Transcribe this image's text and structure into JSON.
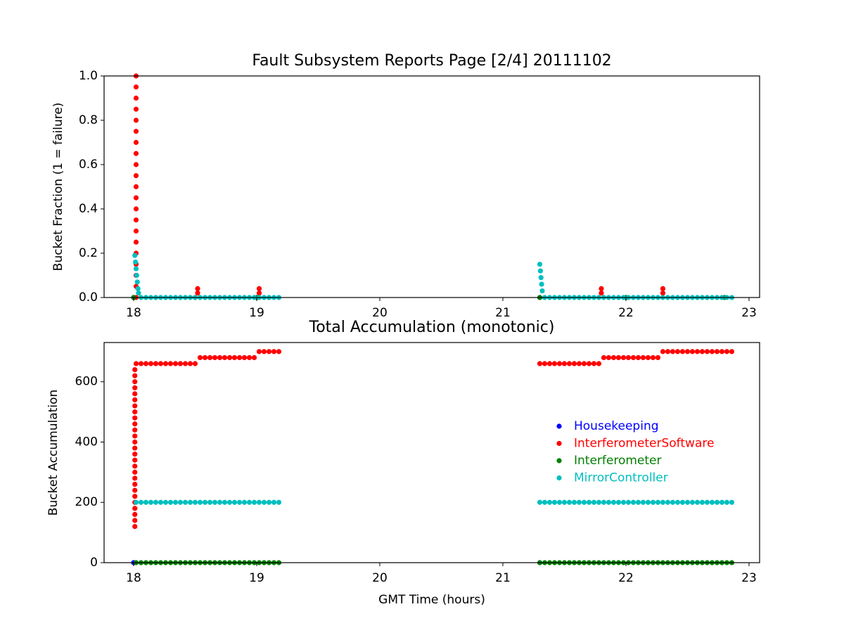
{
  "chart_data": [
    {
      "type": "scatter",
      "title": "Fault Subsystem Reports Page [2/4] 20111102",
      "ylabel": "Bucket Fraction (1 = failure)",
      "xlim": [
        17.76,
        23.086
      ],
      "xticks": [
        18,
        19,
        20,
        21,
        22,
        23
      ],
      "ylim": [
        0,
        1
      ],
      "yticks": [
        {
          "value": 0,
          "label": "0.0"
        },
        0.2,
        0.4,
        0.6,
        0.8,
        {
          "value": 1,
          "label": "1.0"
        }
      ],
      "series": [
        {
          "color": "#0000ff",
          "x": [
            18.0,
            21.3
          ],
          "values": [
            0,
            0
          ]
        },
        {
          "color": "#ff0000",
          "x": [
            18.02,
            18.02,
            18.02,
            18.02,
            18.02,
            18.02,
            18.02,
            18.02,
            18.02,
            18.02,
            18.02,
            18.02,
            18.02,
            18.02,
            18.02,
            18.02,
            18.02,
            18.02,
            18.02,
            18.02,
            18.02,
            18.52,
            18.52,
            19.02,
            19.02,
            21.8,
            21.8,
            22.3,
            22.3
          ],
          "values": [
            1,
            0.95,
            0.9,
            0.85,
            0.8,
            0.75,
            0.7,
            0.65,
            0.6,
            0.55,
            0.5,
            0.45,
            0.4,
            0.35,
            0.3,
            0.25,
            0.2,
            0.15,
            0.1,
            0.05,
            0,
            0.04,
            0.02,
            0.04,
            0.02,
            0.04,
            0.02,
            0.04,
            0.02
          ]
        },
        {
          "color": "#008000",
          "x": [
            18.0,
            18.5,
            19.0,
            21.3,
            22.0,
            22.8
          ],
          "values": [
            0,
            0,
            0,
            0,
            0,
            0
          ]
        },
        {
          "color": "#00bfbf",
          "x": [
            18.01,
            18.015,
            18.02,
            18.025,
            18.03,
            18.035,
            18.04,
            18.06,
            18.1,
            18.14,
            18.18,
            18.22,
            18.26,
            18.3,
            18.34,
            18.38,
            18.42,
            18.46,
            18.5,
            18.54,
            18.58,
            18.62,
            18.66,
            18.7,
            18.74,
            18.78,
            18.82,
            18.86,
            18.9,
            18.94,
            18.98,
            19.02,
            19.06,
            19.1,
            19.14,
            19.18,
            21.3,
            21.305,
            21.31,
            21.315,
            21.32,
            21.34,
            21.38,
            21.42,
            21.46,
            21.5,
            21.54,
            21.58,
            21.62,
            21.66,
            21.7,
            21.74,
            21.78,
            21.82,
            21.86,
            21.9,
            21.94,
            21.98,
            22.02,
            22.06,
            22.1,
            22.14,
            22.18,
            22.22,
            22.26,
            22.3,
            22.34,
            22.38,
            22.42,
            22.46,
            22.5,
            22.54,
            22.58,
            22.62,
            22.66,
            22.7,
            22.74,
            22.78,
            22.82,
            22.86
          ],
          "values": [
            0.19,
            0.16,
            0.13,
            0.1,
            0.07,
            0.04,
            0.02,
            0,
            0,
            0,
            0,
            0,
            0,
            0,
            0,
            0,
            0,
            0,
            0,
            0,
            0,
            0,
            0,
            0,
            0,
            0,
            0,
            0,
            0,
            0,
            0,
            0,
            0,
            0,
            0,
            0,
            0.15,
            0.12,
            0.09,
            0.06,
            0.03,
            0,
            0,
            0,
            0,
            0,
            0,
            0,
            0,
            0,
            0,
            0,
            0,
            0,
            0,
            0,
            0,
            0,
            0,
            0,
            0,
            0,
            0,
            0,
            0,
            0,
            0,
            0,
            0,
            0,
            0,
            0,
            0,
            0,
            0,
            0,
            0,
            0,
            0,
            0
          ]
        }
      ]
    },
    {
      "type": "scatter",
      "title": "Total Accumulation (monotonic)",
      "ylabel": "Bucket Accumulation",
      "xlabel": "GMT Time (hours)",
      "xlim": [
        17.76,
        23.086
      ],
      "xticks": [
        18,
        19,
        20,
        21,
        22,
        23
      ],
      "ylim": [
        0,
        730
      ],
      "yticks": [
        0,
        200,
        400,
        600
      ],
      "legend": "right",
      "series": [
        {
          "name": "Housekeeping",
          "color": "#0000ff",
          "x": [
            18.0,
            21.3
          ],
          "values": [
            0,
            0
          ]
        },
        {
          "name": "InterferometerSoftware",
          "color": "#ff0000",
          "x": [
            18.01,
            18.01,
            18.01,
            18.01,
            18.01,
            18.01,
            18.01,
            18.01,
            18.01,
            18.01,
            18.01,
            18.01,
            18.01,
            18.01,
            18.01,
            18.01,
            18.01,
            18.01,
            18.01,
            18.01,
            18.01,
            18.01,
            18.01,
            18.01,
            18.01,
            18.01,
            18.01,
            18.02,
            18.06,
            18.1,
            18.14,
            18.18,
            18.22,
            18.26,
            18.3,
            18.34,
            18.38,
            18.42,
            18.46,
            18.5,
            18.54,
            18.58,
            18.62,
            18.66,
            18.7,
            18.74,
            18.78,
            18.82,
            18.86,
            18.9,
            18.94,
            18.98,
            19.02,
            19.06,
            19.1,
            19.14,
            19.18,
            21.3,
            21.34,
            21.38,
            21.42,
            21.46,
            21.5,
            21.54,
            21.58,
            21.62,
            21.66,
            21.7,
            21.74,
            21.78,
            21.82,
            21.86,
            21.9,
            21.94,
            21.98,
            22.02,
            22.06,
            22.1,
            22.14,
            22.18,
            22.22,
            22.26,
            22.3,
            22.34,
            22.38,
            22.42,
            22.46,
            22.5,
            22.54,
            22.58,
            22.62,
            22.66,
            22.7,
            22.74,
            22.78,
            22.82,
            22.86
          ],
          "values": [
            120,
            140,
            160,
            180,
            200,
            220,
            240,
            260,
            280,
            300,
            320,
            340,
            360,
            380,
            400,
            420,
            440,
            460,
            480,
            500,
            520,
            540,
            560,
            580,
            600,
            620,
            640,
            660,
            660,
            660,
            660,
            660,
            660,
            660,
            660,
            660,
            660,
            660,
            660,
            660,
            680,
            680,
            680,
            680,
            680,
            680,
            680,
            680,
            680,
            680,
            680,
            680,
            700,
            700,
            700,
            700,
            700,
            660,
            660,
            660,
            660,
            660,
            660,
            660,
            660,
            660,
            660,
            660,
            660,
            660,
            680,
            680,
            680,
            680,
            680,
            680,
            680,
            680,
            680,
            680,
            680,
            680,
            700,
            700,
            700,
            700,
            700,
            700,
            700,
            700,
            700,
            700,
            700,
            700,
            700,
            700,
            700
          ]
        },
        {
          "name": "Interferometer",
          "color": "#008000",
          "x": [
            18.02,
            18.06,
            18.1,
            18.14,
            18.18,
            18.22,
            18.26,
            18.3,
            18.34,
            18.38,
            18.42,
            18.46,
            18.5,
            18.54,
            18.58,
            18.62,
            18.66,
            18.7,
            18.74,
            18.78,
            18.82,
            18.86,
            18.9,
            18.94,
            18.98,
            19.02,
            19.06,
            19.1,
            19.14,
            19.18,
            21.3,
            21.34,
            21.38,
            21.42,
            21.46,
            21.5,
            21.54,
            21.58,
            21.62,
            21.66,
            21.7,
            21.74,
            21.78,
            21.82,
            21.86,
            21.9,
            21.94,
            21.98,
            22.02,
            22.06,
            22.1,
            22.14,
            22.18,
            22.22,
            22.26,
            22.3,
            22.34,
            22.38,
            22.42,
            22.46,
            22.5,
            22.54,
            22.58,
            22.62,
            22.66,
            22.7,
            22.74,
            22.78,
            22.82,
            22.86
          ],
          "values": [
            0,
            0,
            0,
            0,
            0,
            0,
            0,
            0,
            0,
            0,
            0,
            0,
            0,
            0,
            0,
            0,
            0,
            0,
            0,
            0,
            0,
            0,
            0,
            0,
            0,
            0,
            0,
            0,
            0,
            0,
            0,
            0,
            0,
            0,
            0,
            0,
            0,
            0,
            0,
            0,
            0,
            0,
            0,
            0,
            0,
            0,
            0,
            0,
            0,
            0,
            0,
            0,
            0,
            0,
            0,
            0,
            0,
            0,
            0,
            0,
            0,
            0,
            0,
            0,
            0,
            0,
            0,
            0,
            0,
            0
          ]
        },
        {
          "name": "MirrorController",
          "color": "#00bfbf",
          "x": [
            18.02,
            18.06,
            18.1,
            18.14,
            18.18,
            18.22,
            18.26,
            18.3,
            18.34,
            18.38,
            18.42,
            18.46,
            18.5,
            18.54,
            18.58,
            18.62,
            18.66,
            18.7,
            18.74,
            18.78,
            18.82,
            18.86,
            18.9,
            18.94,
            18.98,
            19.02,
            19.06,
            19.1,
            19.14,
            19.18,
            21.3,
            21.34,
            21.38,
            21.42,
            21.46,
            21.5,
            21.54,
            21.58,
            21.62,
            21.66,
            21.7,
            21.74,
            21.78,
            21.82,
            21.86,
            21.9,
            21.94,
            21.98,
            22.02,
            22.06,
            22.1,
            22.14,
            22.18,
            22.22,
            22.26,
            22.3,
            22.34,
            22.38,
            22.42,
            22.46,
            22.5,
            22.54,
            22.58,
            22.62,
            22.66,
            22.7,
            22.74,
            22.78,
            22.82,
            22.86
          ],
          "values": [
            200,
            200,
            200,
            200,
            200,
            200,
            200,
            200,
            200,
            200,
            200,
            200,
            200,
            200,
            200,
            200,
            200,
            200,
            200,
            200,
            200,
            200,
            200,
            200,
            200,
            200,
            200,
            200,
            200,
            200,
            200,
            200,
            200,
            200,
            200,
            200,
            200,
            200,
            200,
            200,
            200,
            200,
            200,
            200,
            200,
            200,
            200,
            200,
            200,
            200,
            200,
            200,
            200,
            200,
            200,
            200,
            200,
            200,
            200,
            200,
            200,
            200,
            200,
            200,
            200,
            200,
            200,
            200,
            200,
            200
          ]
        }
      ]
    }
  ]
}
